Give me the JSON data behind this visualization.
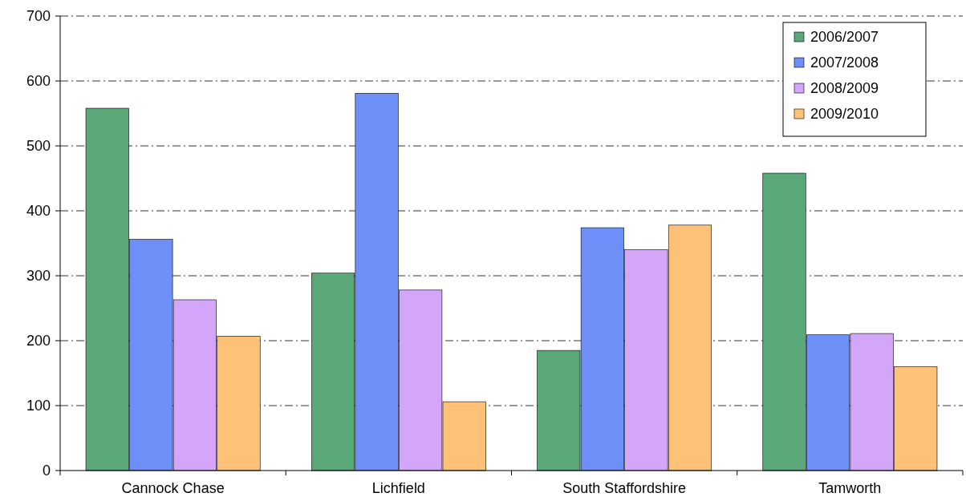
{
  "chart_data": {
    "type": "bar",
    "categories": [
      "Cannock Chase",
      "Lichfield",
      "South Staffordshire",
      "Tamworth"
    ],
    "series": [
      {
        "name": "2006/2007",
        "color": "#5aa87a",
        "values": [
          558,
          304,
          185,
          458
        ]
      },
      {
        "name": "2007/2008",
        "color": "#6f8ff8",
        "values": [
          356,
          581,
          374,
          209
        ]
      },
      {
        "name": "2008/2009",
        "color": "#d4a6fa",
        "values": [
          263,
          278,
          340,
          211
        ]
      },
      {
        "name": "2009/2010",
        "color": "#fdc178",
        "values": [
          207,
          106,
          378,
          160
        ]
      }
    ],
    "ylim": [
      0,
      700
    ],
    "yticks": [
      0,
      100,
      200,
      300,
      400,
      500,
      600,
      700
    ],
    "grid": "y",
    "legend": "top right"
  }
}
